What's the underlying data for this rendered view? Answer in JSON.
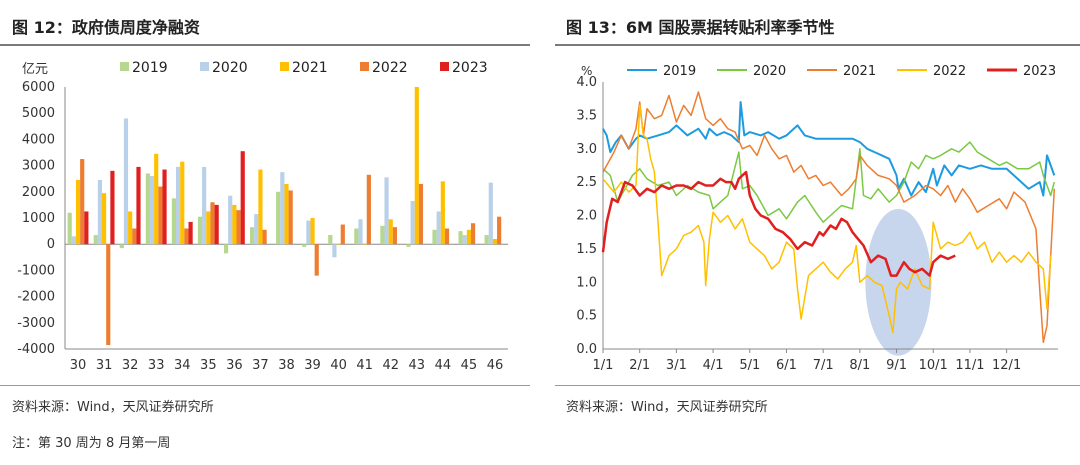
{
  "left": {
    "title": "图 12：政府债周度净融资",
    "source": "资料来源：Wind，天风证券研究所",
    "note": "注：第 30 周为 8 月第一周"
  },
  "right": {
    "title": "图 13：6M 国股票据转贴利率季节性",
    "source": "资料来源：Wind，天风证券研究所"
  },
  "chart_data": [
    {
      "type": "bar",
      "ylabel": "亿元",
      "ylim": [
        -4000,
        6000
      ],
      "yticks": [
        6000,
        5000,
        4000,
        3000,
        2000,
        1000,
        0,
        -1000,
        -2000,
        -3000,
        -4000
      ],
      "categories": [
        "30",
        "31",
        "32",
        "33",
        "34",
        "35",
        "36",
        "37",
        "38",
        "39",
        "40",
        "41",
        "42",
        "43",
        "44",
        "45",
        "46"
      ],
      "legend_position": "top",
      "series": [
        {
          "name": "2019",
          "color": "#b5d88e",
          "values": [
            1200,
            350,
            -150,
            2700,
            1750,
            1050,
            -350,
            650,
            2000,
            -100,
            350,
            600,
            700,
            -100,
            550,
            500,
            350
          ]
        },
        {
          "name": "2020",
          "color": "#b8d0ea",
          "values": [
            300,
            2450,
            4800,
            2600,
            2950,
            2950,
            1850,
            1150,
            2750,
            900,
            -500,
            950,
            2550,
            1650,
            1250,
            350,
            2350
          ]
        },
        {
          "name": "2021",
          "color": "#ffc000",
          "values": [
            2450,
            1950,
            1250,
            3450,
            3150,
            1250,
            1500,
            2850,
            2300,
            1000,
            0,
            0,
            950,
            6000,
            2400,
            550,
            200
          ]
        },
        {
          "name": "2022",
          "color": "#ed7d31",
          "values": [
            3250,
            -3850,
            600,
            2200,
            600,
            1600,
            1300,
            550,
            2050,
            -1200,
            750,
            2650,
            650,
            2300,
            600,
            800,
            1050
          ]
        },
        {
          "name": "2023",
          "color": "#e02020",
          "values": [
            1250,
            2800,
            2950,
            2850,
            850,
            1500,
            3550,
            null,
            null,
            null,
            null,
            null,
            null,
            null,
            null,
            null,
            null
          ]
        }
      ]
    },
    {
      "type": "line",
      "ylabel": "%",
      "ylim": [
        0.0,
        4.0
      ],
      "yticks": [
        "4.0",
        "3.5",
        "3.0",
        "2.5",
        "2.0",
        "1.5",
        "1.0",
        "0.5",
        "0.0"
      ],
      "xticks": [
        "1/1",
        "2/1",
        "3/1",
        "4/1",
        "5/1",
        "6/1",
        "7/1",
        "8/1",
        "9/1",
        "10/1",
        "11/1",
        "12/1"
      ],
      "legend_position": "top",
      "highlight_ellipse": {
        "center_x": 8.05,
        "center_y": 1.0,
        "radius_x": 0.9,
        "radius_y": 1.1,
        "color": "#b4c7e7"
      },
      "series": [
        {
          "name": "2019",
          "color": "#1e9be0",
          "width": 2,
          "x": [
            0,
            0.1,
            0.2,
            0.35,
            0.5,
            0.7,
            0.9,
            1.0,
            1.2,
            1.5,
            1.8,
            2.0,
            2.3,
            2.6,
            2.8,
            2.9,
            3.0,
            3.1,
            3.3,
            3.5,
            3.7,
            3.75,
            3.85,
            4.0,
            4.3,
            4.5,
            4.8,
            5.0,
            5.3,
            5.5,
            5.8,
            6.0,
            6.3,
            6.5,
            6.8,
            7.0,
            7.2,
            7.4,
            7.6,
            7.8,
            8.0,
            8.05,
            8.2,
            8.4,
            8.6,
            8.8,
            9.0,
            9.1,
            9.3,
            9.5,
            9.7,
            10.0,
            10.3,
            10.6,
            11.0,
            11.3,
            11.6,
            11.9,
            12.0,
            12.1,
            12.2,
            12.3
          ],
          "y": [
            3.3,
            3.2,
            2.95,
            3.1,
            3.2,
            3.0,
            3.15,
            3.2,
            3.15,
            3.2,
            3.25,
            3.35,
            3.2,
            3.3,
            3.15,
            3.3,
            3.25,
            3.2,
            3.25,
            3.2,
            3.1,
            3.7,
            3.2,
            3.25,
            3.2,
            3.25,
            3.15,
            3.2,
            3.35,
            3.2,
            3.15,
            3.15,
            3.15,
            3.15,
            3.15,
            3.1,
            3.0,
            2.95,
            2.9,
            2.85,
            2.6,
            2.4,
            2.55,
            2.3,
            2.5,
            2.35,
            2.7,
            2.45,
            2.75,
            2.6,
            2.75,
            2.7,
            2.75,
            2.7,
            2.7,
            2.55,
            2.4,
            2.5,
            2.3,
            2.9,
            2.75,
            2.6
          ]
        },
        {
          "name": "2020",
          "color": "#7ac943",
          "width": 1.5,
          "x": [
            0,
            0.2,
            0.4,
            0.6,
            0.8,
            1.0,
            1.2,
            1.5,
            1.8,
            2.0,
            2.3,
            2.6,
            2.9,
            3.0,
            3.2,
            3.4,
            3.7,
            3.8,
            4.0,
            4.2,
            4.5,
            4.8,
            5.0,
            5.3,
            5.5,
            5.8,
            6.0,
            6.2,
            6.5,
            6.8,
            7.0,
            7.1,
            7.3,
            7.5,
            7.8,
            8.0,
            8.2,
            8.4,
            8.6,
            8.8,
            9.0,
            9.2,
            9.5,
            9.7,
            10.0,
            10.2,
            10.5,
            10.8,
            11.0,
            11.3,
            11.6,
            11.9,
            12.0,
            12.2,
            12.3
          ],
          "y": [
            2.7,
            2.6,
            2.2,
            2.4,
            2.6,
            2.7,
            2.55,
            2.45,
            2.5,
            2.3,
            2.45,
            2.35,
            2.3,
            2.1,
            2.2,
            2.3,
            2.95,
            2.4,
            2.45,
            2.3,
            2.0,
            2.1,
            1.95,
            2.2,
            2.3,
            2.05,
            1.9,
            2.0,
            2.15,
            2.1,
            3.0,
            2.3,
            2.25,
            2.4,
            2.2,
            2.3,
            2.5,
            2.8,
            2.7,
            2.9,
            2.85,
            2.9,
            3.0,
            2.95,
            3.1,
            2.95,
            2.85,
            2.75,
            2.8,
            2.7,
            2.7,
            2.8,
            2.6,
            2.3,
            2.5
          ]
        },
        {
          "name": "2021",
          "color": "#ed7d31",
          "width": 1.5,
          "x": [
            0,
            0.15,
            0.3,
            0.5,
            0.7,
            0.9,
            1.0,
            1.1,
            1.2,
            1.4,
            1.6,
            1.8,
            2.0,
            2.2,
            2.4,
            2.6,
            2.8,
            3.0,
            3.2,
            3.4,
            3.6,
            3.8,
            4.0,
            4.2,
            4.4,
            4.6,
            4.8,
            5.0,
            5.2,
            5.4,
            5.6,
            5.8,
            6.0,
            6.2,
            6.5,
            6.7,
            6.9,
            7.0,
            7.2,
            7.5,
            7.8,
            8.0,
            8.2,
            8.5,
            8.8,
            9.0,
            9.2,
            9.4,
            9.6,
            9.8,
            10.0,
            10.2,
            10.5,
            10.8,
            11.0,
            11.2,
            11.5,
            11.8,
            11.9,
            12.0,
            12.1,
            12.2,
            12.3
          ],
          "y": [
            2.65,
            2.8,
            2.95,
            3.2,
            3.0,
            3.3,
            3.7,
            3.2,
            3.6,
            3.45,
            3.5,
            3.8,
            3.4,
            3.65,
            3.5,
            3.85,
            3.45,
            3.35,
            3.45,
            3.3,
            3.25,
            3.0,
            3.05,
            2.9,
            3.2,
            3.0,
            2.85,
            2.9,
            2.65,
            2.75,
            2.55,
            2.6,
            2.45,
            2.5,
            2.3,
            2.4,
            2.55,
            2.9,
            2.75,
            2.6,
            2.55,
            2.45,
            2.2,
            2.3,
            2.45,
            2.4,
            2.3,
            2.45,
            2.2,
            2.4,
            2.25,
            2.05,
            2.15,
            2.25,
            2.1,
            2.35,
            2.2,
            1.8,
            0.9,
            0.1,
            0.35,
            1.4,
            2.4
          ]
        },
        {
          "name": "2022",
          "color": "#ffc000",
          "width": 1.5,
          "x": [
            0,
            0.15,
            0.3,
            0.5,
            0.7,
            0.9,
            1.0,
            1.1,
            1.2,
            1.3,
            1.4,
            1.5,
            1.6,
            1.8,
            2.0,
            2.2,
            2.4,
            2.6,
            2.75,
            2.8,
            2.9,
            3.0,
            3.2,
            3.4,
            3.6,
            3.8,
            4.0,
            4.2,
            4.4,
            4.6,
            4.8,
            5.0,
            5.2,
            5.3,
            5.4,
            5.6,
            5.8,
            6.0,
            6.2,
            6.4,
            6.6,
            6.8,
            6.9,
            7.0,
            7.2,
            7.4,
            7.6,
            7.8,
            7.9,
            8.0,
            8.1,
            8.3,
            8.5,
            8.7,
            8.9,
            9.0,
            9.2,
            9.4,
            9.6,
            9.8,
            10.0,
            10.2,
            10.4,
            10.6,
            10.8,
            11.0,
            11.2,
            11.4,
            11.6,
            11.8,
            12.0,
            12.1,
            12.2
          ],
          "y": [
            2.55,
            2.45,
            2.35,
            2.5,
            2.35,
            2.45,
            3.65,
            3.2,
            3.15,
            2.85,
            2.65,
            1.9,
            1.1,
            1.4,
            1.5,
            1.7,
            1.75,
            1.85,
            1.6,
            0.95,
            1.65,
            2.05,
            1.9,
            2.0,
            1.8,
            1.95,
            1.6,
            1.5,
            1.4,
            1.2,
            1.3,
            1.6,
            1.5,
            0.9,
            0.45,
            1.1,
            1.2,
            1.3,
            1.15,
            1.05,
            1.2,
            1.3,
            1.55,
            1.0,
            1.1,
            1.0,
            0.95,
            0.5,
            0.25,
            0.9,
            1.0,
            0.9,
            1.2,
            0.95,
            0.9,
            1.9,
            1.5,
            1.6,
            1.55,
            1.6,
            1.75,
            1.5,
            1.6,
            1.3,
            1.45,
            1.3,
            1.4,
            1.3,
            1.45,
            1.3,
            1.2,
            0.6,
            1.4
          ]
        },
        {
          "name": "2023",
          "color": "#e02020",
          "width": 2.5,
          "x": [
            0,
            0.1,
            0.25,
            0.4,
            0.6,
            0.8,
            1.0,
            1.2,
            1.4,
            1.6,
            1.8,
            2.0,
            2.2,
            2.4,
            2.6,
            2.8,
            3.0,
            3.2,
            3.35,
            3.5,
            3.6,
            3.7,
            3.8,
            3.9,
            4.0,
            4.15,
            4.3,
            4.5,
            4.7,
            4.9,
            5.1,
            5.3,
            5.5,
            5.7,
            5.9,
            6.0,
            6.2,
            6.35,
            6.5,
            6.65,
            6.8,
            6.95,
            7.1,
            7.3,
            7.5,
            7.7,
            7.85,
            8.0,
            8.2,
            8.35,
            8.5,
            8.7,
            8.9,
            9.0,
            9.2,
            9.4,
            9.6
          ],
          "y": [
            1.45,
            1.9,
            2.25,
            2.2,
            2.5,
            2.45,
            2.3,
            2.4,
            2.35,
            2.45,
            2.4,
            2.45,
            2.45,
            2.4,
            2.5,
            2.45,
            2.45,
            2.55,
            2.5,
            2.5,
            2.4,
            2.55,
            2.6,
            2.65,
            2.3,
            2.1,
            2.0,
            1.95,
            1.8,
            1.75,
            1.65,
            1.5,
            1.6,
            1.55,
            1.75,
            1.7,
            1.85,
            1.8,
            1.95,
            1.9,
            1.75,
            1.65,
            1.55,
            1.3,
            1.4,
            1.35,
            1.1,
            1.1,
            1.3,
            1.2,
            1.15,
            1.2,
            1.1,
            1.3,
            1.4,
            1.35,
            1.4
          ]
        }
      ]
    }
  ]
}
